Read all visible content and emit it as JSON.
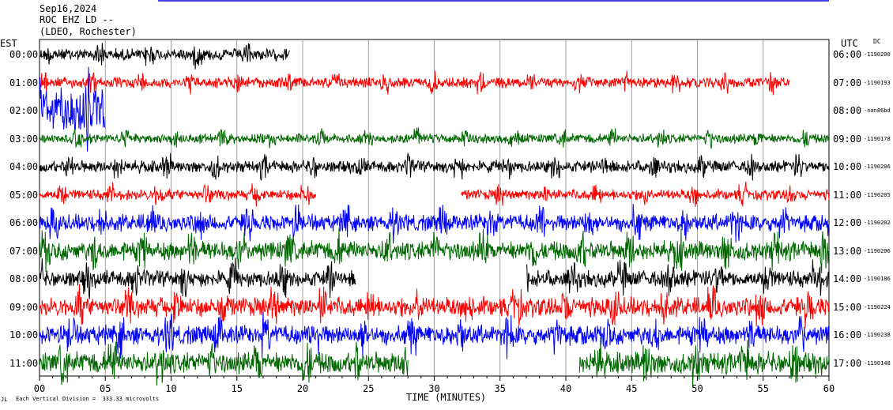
{
  "header": {
    "date": "Sep16,2024",
    "station": "ROC EHZ LD --",
    "network": "(LDEO, Rochester)"
  },
  "axis": {
    "left_zone": "EST",
    "right_zone": "UTC",
    "dc_label": "DC",
    "x_title": "TIME (MINUTES)",
    "footer_note": "Each Vertical Division =  333.33 microvolts",
    "footer_mark": "JL"
  },
  "chart_data": {
    "type": "line",
    "title": "Sep16,2024  ROC EHZ LD --  (LDEO, Rochester)",
    "xlabel": "TIME (MINUTES)",
    "ylabel": "",
    "xlim": [
      0,
      60
    ],
    "x_ticks": [
      "00",
      "05",
      "10",
      "15",
      "20",
      "25",
      "30",
      "35",
      "40",
      "45",
      "50",
      "55",
      "60"
    ],
    "grid": true,
    "series": [
      {
        "est": "00:00",
        "utc": "06:00",
        "dc": "-1190200",
        "color": "#000000",
        "start": 0,
        "end": 19,
        "amp": 0.25,
        "gap": null
      },
      {
        "est": "01:00",
        "utc": "07:00",
        "dc": "-1190193",
        "color": "#ff0000",
        "start": 0,
        "end": 57,
        "amp": 0.22,
        "gap": null
      },
      {
        "est": "02:00",
        "utc": "08:00",
        "dc": "-nan86bd",
        "color": "#0000ff",
        "start": 0,
        "end": 5,
        "amp": 0.9,
        "gap": null
      },
      {
        "est": "03:00",
        "utc": "09:00",
        "dc": "-1190178",
        "color": "#006600",
        "start": 0,
        "end": 60,
        "amp": 0.2,
        "gap": null
      },
      {
        "est": "04:00",
        "utc": "10:00",
        "dc": "-1190206",
        "color": "#000000",
        "start": 0,
        "end": 60,
        "amp": 0.25,
        "gap": null
      },
      {
        "est": "05:00",
        "utc": "11:00",
        "dc": "-1190205",
        "color": "#ff0000",
        "start": 0,
        "end": 60,
        "amp": 0.22,
        "gap": [
          21,
          32
        ]
      },
      {
        "est": "06:00",
        "utc": "12:00",
        "dc": "-1190202",
        "color": "#0000ff",
        "start": 0,
        "end": 60,
        "amp": 0.35,
        "gap": null
      },
      {
        "est": "07:00",
        "utc": "13:00",
        "dc": "-1190206",
        "color": "#006600",
        "start": 0,
        "end": 60,
        "amp": 0.4,
        "gap": null
      },
      {
        "est": "08:00",
        "utc": "14:00",
        "dc": "-1190186",
        "color": "#000000",
        "start": 0,
        "end": 60,
        "amp": 0.35,
        "gap": [
          24,
          37
        ]
      },
      {
        "est": "09:00",
        "utc": "15:00",
        "dc": "-1190224",
        "color": "#ff0000",
        "start": 0,
        "end": 60,
        "amp": 0.4,
        "gap": null
      },
      {
        "est": "10:00",
        "utc": "16:00",
        "dc": "-1190238",
        "color": "#0000ff",
        "start": 0,
        "end": 60,
        "amp": 0.4,
        "gap": null
      },
      {
        "est": "11:00",
        "utc": "17:00",
        "dc": "-1190148",
        "color": "#006600",
        "start": 0,
        "end": 60,
        "amp": 0.45,
        "gap": [
          28,
          41
        ]
      }
    ]
  }
}
